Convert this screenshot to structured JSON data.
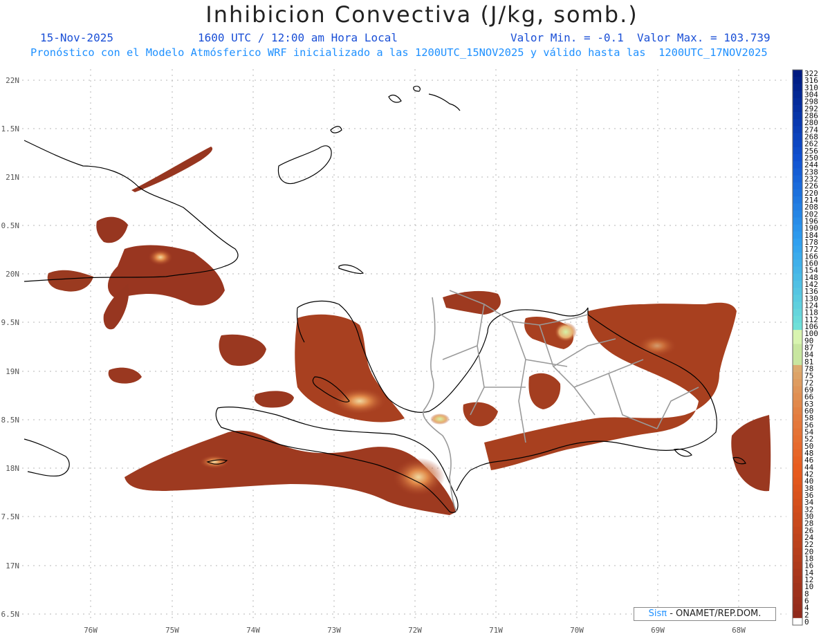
{
  "header": {
    "title": "Inhibicion Convectiva (J/kg, somb.)",
    "date": "15-Nov-2025",
    "time": "1600 UTC / 12:00 am Hora Local",
    "min_max": "Valor Min. = -0.1  Valor Max. = 103.739",
    "subtitle": "Pronóstico con el Modelo Atmósferico WRF inicializado a las 1200UTC_15NOV2025 y válido hasta las  1200UTC_17NOV2025"
  },
  "axes": {
    "lat_labels": [
      "22N",
      "1.5N",
      "21N",
      "0.5N",
      "20N",
      "9.5N",
      "19N",
      "8.5N",
      "18N",
      "7.5N",
      "17N",
      "6.5N"
    ],
    "lon_labels": [
      "76W",
      "75W",
      "74W",
      "73W",
      "72W",
      "71W",
      "70W",
      "69W",
      "68W"
    ]
  },
  "colorbar": {
    "labels": [
      "322",
      "316",
      "310",
      "304",
      "298",
      "292",
      "286",
      "280",
      "274",
      "268",
      "262",
      "256",
      "250",
      "244",
      "238",
      "232",
      "226",
      "220",
      "214",
      "208",
      "202",
      "196",
      "190",
      "184",
      "178",
      "172",
      "166",
      "160",
      "154",
      "148",
      "142",
      "136",
      "130",
      "124",
      "118",
      "112",
      "106",
      "100",
      "90",
      "87",
      "84",
      "81",
      "78",
      "75",
      "72",
      "69",
      "66",
      "63",
      "60",
      "58",
      "56",
      "54",
      "52",
      "50",
      "48",
      "46",
      "44",
      "42",
      "40",
      "38",
      "36",
      "34",
      "32",
      "30",
      "28",
      "26",
      "24",
      "22",
      "20",
      "18",
      "16",
      "14",
      "12",
      "10",
      "8",
      "6",
      "4",
      "2",
      "0"
    ]
  },
  "credit": {
    "brand": "Sisπ",
    "text": " - ONAMET/REP.DOM."
  },
  "colors": {
    "field_low": "#8b2a1a",
    "field_mid": "#c4531f",
    "field_high": "#e8a060",
    "field_peak": "#d8f0a0",
    "coast": "#000000",
    "border": "#9a9a9a"
  }
}
